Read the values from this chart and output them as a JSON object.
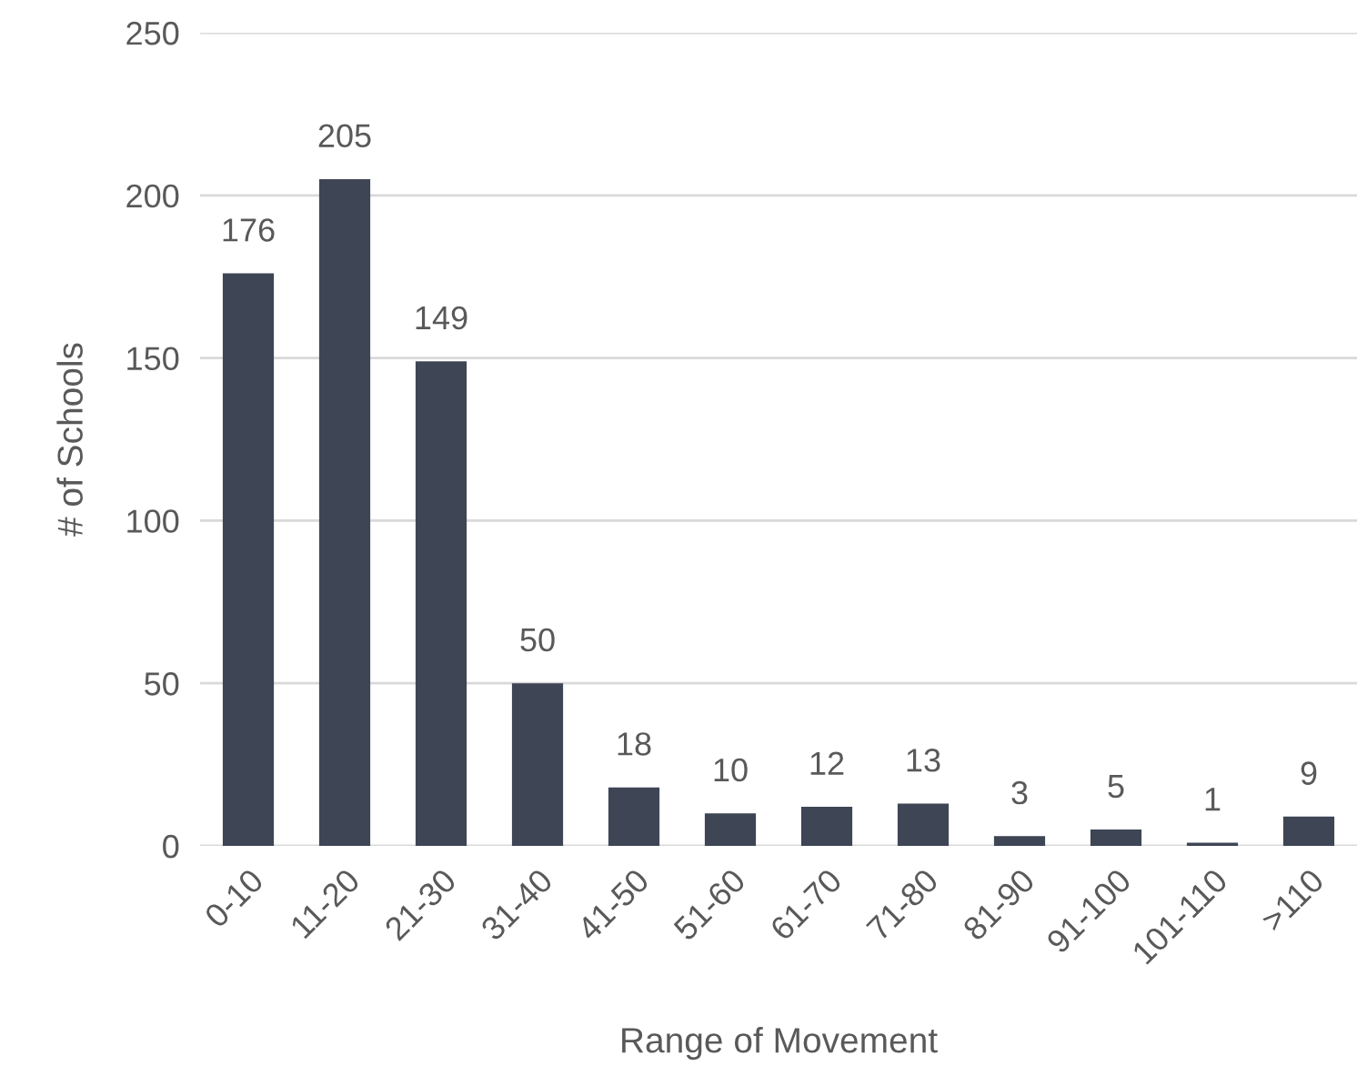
{
  "chart_data": {
    "type": "bar",
    "xlabel": "Range of Movement",
    "ylabel": "# of Schools",
    "categories": [
      "0-10",
      "11-20",
      "21-30",
      "31-40",
      "41-50",
      "51-60",
      "61-70",
      "71-80",
      "81-90",
      "91-100",
      "101-110",
      ">110"
    ],
    "values": [
      176,
      205,
      149,
      50,
      18,
      10,
      12,
      13,
      3,
      5,
      1,
      9
    ],
    "color": "#3e4555",
    "ylim": [
      0,
      250
    ],
    "yticks": [
      0,
      50,
      100,
      150,
      200,
      250
    ],
    "grid": "y",
    "data_labels": true,
    "legend": false
  }
}
